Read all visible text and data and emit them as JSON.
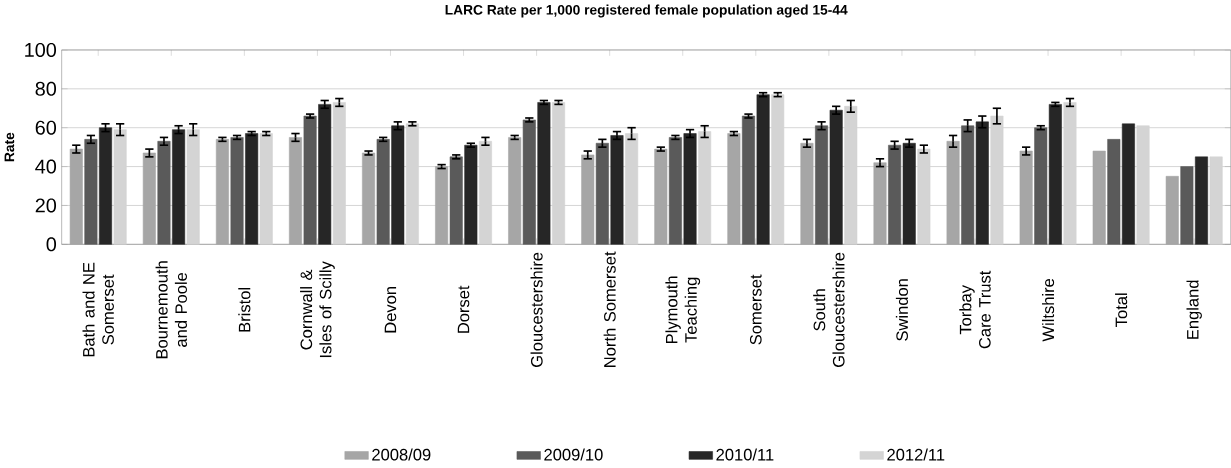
{
  "chart_data": {
    "type": "bar",
    "title": "LARC Rate per 1,000 registered female population aged 15-44",
    "ylabel": "Rate",
    "categories": [
      "Bath and NE Somerset",
      "Bournemouth and Poole",
      "Bristol",
      "Cornwall & Isles of Scilly",
      "Devon",
      "Dorset",
      "Gloucestershire",
      "North Somerset",
      "Plymouth Teaching",
      "Somerset",
      "South Gloucestershire",
      "Swindon",
      "Torbay Care Trust",
      "Wiltshire",
      "Total",
      "England"
    ],
    "series": [
      {
        "name": "2008/09",
        "color": "#a6a6a6",
        "values": [
          49,
          47,
          54,
          55,
          47,
          40,
          55,
          46,
          49,
          57,
          52,
          42,
          53,
          48,
          48,
          35
        ],
        "errors": [
          2,
          2,
          1,
          2,
          1,
          1,
          1,
          2,
          1,
          1,
          2,
          2,
          3,
          2,
          null,
          null
        ]
      },
      {
        "name": "2009/10",
        "color": "#5a5a5a",
        "values": [
          54,
          53,
          55,
          66,
          54,
          45,
          64,
          52,
          55,
          66,
          61,
          51,
          61,
          60,
          54,
          40
        ],
        "errors": [
          2,
          2,
          1,
          1,
          1,
          1,
          1,
          2,
          1,
          1,
          2,
          2,
          3,
          1,
          null,
          null
        ]
      },
      {
        "name": "2010/11",
        "color": "#262626",
        "values": [
          60,
          59,
          57,
          72,
          61,
          51,
          73,
          56,
          57,
          77,
          69,
          52,
          63,
          72,
          62,
          45
        ],
        "errors": [
          2,
          2,
          1,
          2,
          2,
          1,
          1,
          2,
          2,
          1,
          2,
          2,
          3,
          1,
          null,
          null
        ]
      },
      {
        "name": "2012/11",
        "color": "#d4d4d4",
        "values": [
          59,
          59,
          57,
          73,
          62,
          53,
          73,
          57,
          58,
          77,
          71,
          49,
          66,
          73,
          61,
          45
        ],
        "errors": [
          3,
          3,
          1,
          2,
          1,
          2,
          1,
          3,
          3,
          1,
          3,
          2,
          4,
          2,
          null,
          null
        ]
      }
    ],
    "ylim": [
      0,
      100
    ],
    "yticks": [
      0,
      20,
      40,
      60,
      80,
      100
    ],
    "grid": "y",
    "legend": "bottom"
  }
}
